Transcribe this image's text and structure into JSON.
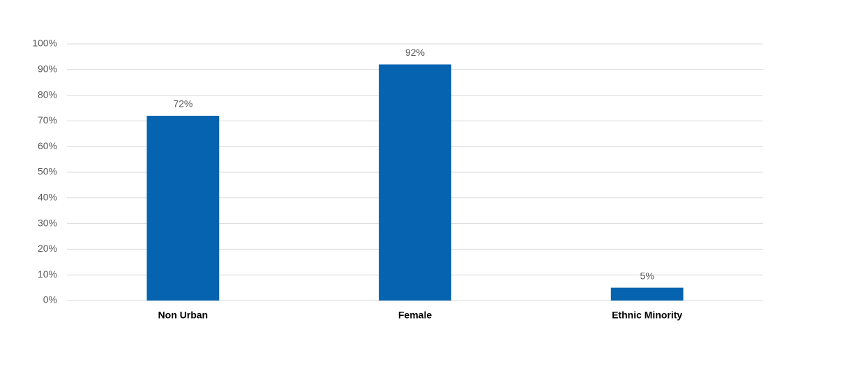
{
  "chart_data": {
    "type": "bar",
    "categories": [
      "Non Urban",
      "Female",
      "Ethnic Minority"
    ],
    "values": [
      72,
      92,
      5
    ],
    "value_labels": [
      "72%",
      "92%",
      "5%"
    ],
    "color": "#0563b0",
    "ylim": [
      0,
      100
    ],
    "yticks": [
      {
        "value": 0,
        "label": "0%"
      },
      {
        "value": 10,
        "label": "10%"
      },
      {
        "value": 20,
        "label": "20%"
      },
      {
        "value": 30,
        "label": "30%"
      },
      {
        "value": 40,
        "label": "40%"
      },
      {
        "value": 50,
        "label": "50%"
      },
      {
        "value": 60,
        "label": "60%"
      },
      {
        "value": 70,
        "label": "70%"
      },
      {
        "value": 80,
        "label": "80%"
      },
      {
        "value": 90,
        "label": "90%"
      },
      {
        "value": 100,
        "label": "100%"
      }
    ],
    "grid": true
  }
}
